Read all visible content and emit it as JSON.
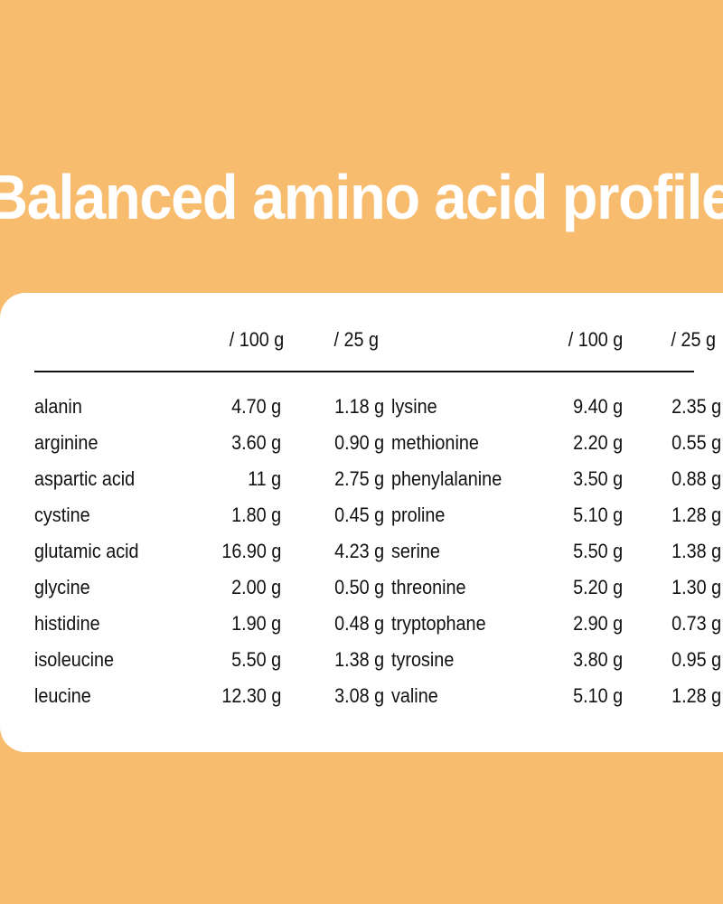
{
  "title": "Balanced amino acid profile",
  "table": {
    "headers": {
      "left_per100": "/ 100 g",
      "left_per25": "/ 25 g",
      "right_per100": "/ 100 g",
      "right_per25": "/ 25 g"
    },
    "left": [
      {
        "name": "alanin",
        "per100": "4.70 g",
        "per25": "1.18 g"
      },
      {
        "name": "arginine",
        "per100": "3.60 g",
        "per25": "0.90 g"
      },
      {
        "name": "aspartic acid",
        "per100": "11 g",
        "per25": "2.75 g"
      },
      {
        "name": "cystine",
        "per100": "1.80 g",
        "per25": "0.45 g"
      },
      {
        "name": "glutamic acid",
        "per100": "16.90 g",
        "per25": "4.23 g"
      },
      {
        "name": "glycine",
        "per100": "2.00 g",
        "per25": "0.50 g"
      },
      {
        "name": "histidine",
        "per100": "1.90 g",
        "per25": "0.48 g"
      },
      {
        "name": "isoleucine",
        "per100": "5.50 g",
        "per25": "1.38 g"
      },
      {
        "name": "leucine",
        "per100": "12.30 g",
        "per25": "3.08 g"
      }
    ],
    "right": [
      {
        "name": "lysine",
        "per100": "9.40 g",
        "per25": "2.35 g"
      },
      {
        "name": "methionine",
        "per100": "2.20 g",
        "per25": "0.55 g"
      },
      {
        "name": "phenylalanine",
        "per100": "3.50 g",
        "per25": "0.88 g"
      },
      {
        "name": "proline",
        "per100": "5.10 g",
        "per25": "1.28 g"
      },
      {
        "name": "serine",
        "per100": "5.50 g",
        "per25": "1.38 g"
      },
      {
        "name": "threonine",
        "per100": "5.20 g",
        "per25": "1.30 g"
      },
      {
        "name": "tryptophane",
        "per100": "2.90 g",
        "per25": "0.73 g"
      },
      {
        "name": "tyrosine",
        "per100": "3.80 g",
        "per25": "0.95 g"
      },
      {
        "name": "valine",
        "per100": "5.10 g",
        "per25": "1.28 g"
      }
    ]
  }
}
